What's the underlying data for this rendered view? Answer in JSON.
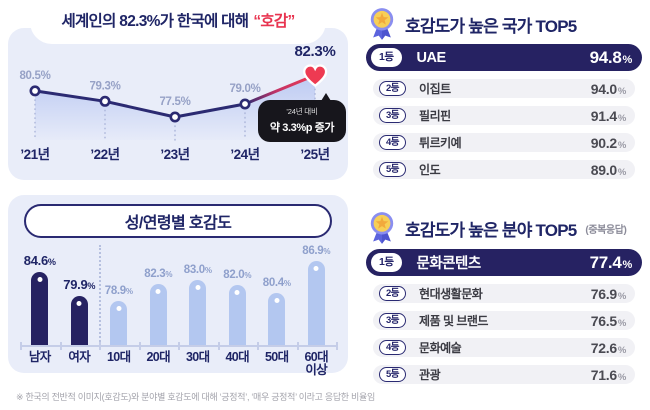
{
  "trend": {
    "title_prefix": "세계인의 82.3%가 한국에 대해",
    "title_highlight": "“호감”",
    "callout_line1": "’24년 대비",
    "callout_line2": "약 3.3%p 증가"
  },
  "footnote": "※ 한국의 전반적 이미지(호감도)와 분야별 호감도에 대해 ‘긍정적’, ‘매우 긍정적’ 이라고 응답한 비율임",
  "chart_data": [
    {
      "id": "korea-favorability-trend",
      "type": "line",
      "title": "세계인의 82.3%가 한국에 대해 “호감”",
      "x": [
        "’21년",
        "’22년",
        "’23년",
        "’24년",
        "’25년"
      ],
      "values": [
        80.5,
        79.3,
        77.5,
        79.0,
        82.3
      ],
      "unit": "%",
      "ylim": [
        75,
        85
      ],
      "annotation": "’24년 대비 약 3.3%p 증가",
      "line_color": "#2b2a72",
      "highlight_color": "#ee3a52"
    },
    {
      "id": "favorability-by-gender-age",
      "type": "bar",
      "title": "성/연령별 호감도",
      "categories": [
        "남자",
        "여자",
        "10대",
        "20대",
        "30대",
        "40대",
        "50대",
        "60대\n이상"
      ],
      "values": [
        84.6,
        79.9,
        78.9,
        82.3,
        83.0,
        82.0,
        80.4,
        86.9
      ],
      "unit": "%",
      "ylim": [
        70,
        90
      ],
      "group_colors": {
        "gender": "#262262",
        "age": "#b3c7f0"
      }
    },
    {
      "id": "top5-countries",
      "type": "table",
      "title": "호감도가 높은 국가 TOP5",
      "rows": [
        {
          "rank": "1등",
          "label": "UAE",
          "value": "94.8"
        },
        {
          "rank": "2등",
          "label": "이집트",
          "value": "94.0"
        },
        {
          "rank": "3등",
          "label": "필리핀",
          "value": "91.4"
        },
        {
          "rank": "4등",
          "label": "튀르키예",
          "value": "90.2"
        },
        {
          "rank": "5등",
          "label": "인도",
          "value": "89.0"
        }
      ]
    },
    {
      "id": "top5-sectors",
      "type": "table",
      "title": "호감도가 높은 분야 TOP5",
      "subtitle": "(중복응답)",
      "rows": [
        {
          "rank": "1등",
          "label": "문화콘텐츠",
          "value": "77.4"
        },
        {
          "rank": "2등",
          "label": "현대생활문화",
          "value": "76.9"
        },
        {
          "rank": "3등",
          "label": "제품 및 브랜드",
          "value": "76.5"
        },
        {
          "rank": "4등",
          "label": "문화예술",
          "value": "72.6"
        },
        {
          "rank": "5등",
          "label": "관광",
          "value": "71.6"
        }
      ]
    }
  ]
}
